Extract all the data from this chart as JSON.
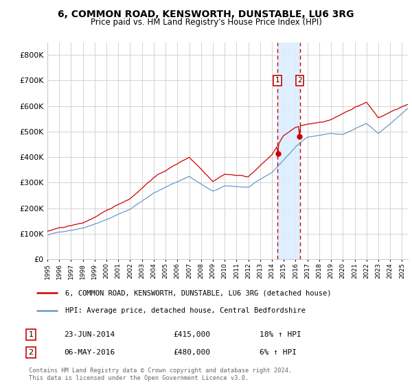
{
  "title": "6, COMMON ROAD, KENSWORTH, DUNSTABLE, LU6 3RG",
  "subtitle": "Price paid vs. HM Land Registry's House Price Index (HPI)",
  "legend_label_red": "6, COMMON ROAD, KENSWORTH, DUNSTABLE, LU6 3RG (detached house)",
  "legend_label_blue": "HPI: Average price, detached house, Central Bedfordshire",
  "transaction1_date": "23-JUN-2014",
  "transaction1_price": 415000,
  "transaction1_pct": "18% ↑ HPI",
  "transaction2_date": "06-MAY-2016",
  "transaction2_price": 480000,
  "transaction2_pct": "6% ↑ HPI",
  "footer": "Contains HM Land Registry data © Crown copyright and database right 2024.\nThis data is licensed under the Open Government Licence v3.0.",
  "red_color": "#cc0000",
  "blue_color": "#6699cc",
  "bg_color": "#ffffff",
  "grid_color": "#cccccc",
  "shade_color": "#ddeeff",
  "x_start": 1995.0,
  "x_end": 2025.5,
  "y_min": 0,
  "y_max": 850000,
  "transaction1_x": 2014.48,
  "transaction2_x": 2016.35,
  "yticks": [
    0,
    100000,
    200000,
    300000,
    400000,
    500000,
    600000,
    700000,
    800000
  ],
  "xtick_years": [
    1995,
    1996,
    1997,
    1998,
    1999,
    2000,
    2001,
    2002,
    2003,
    2004,
    2005,
    2006,
    2007,
    2008,
    2009,
    2010,
    2011,
    2012,
    2013,
    2014,
    2015,
    2016,
    2017,
    2018,
    2019,
    2020,
    2021,
    2022,
    2023,
    2024,
    2025
  ]
}
